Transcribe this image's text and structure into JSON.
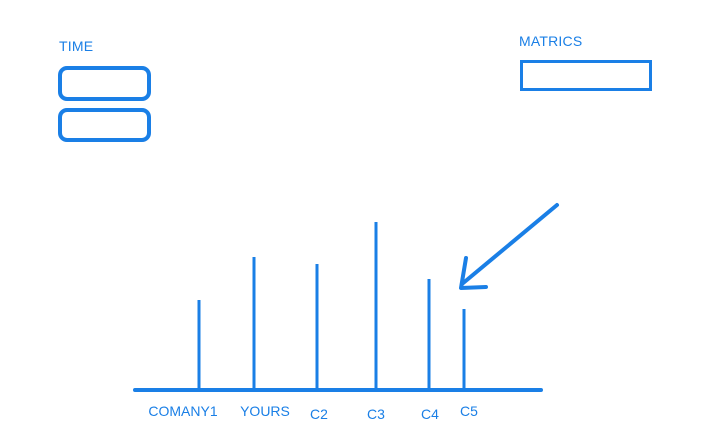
{
  "accent_color": "#1a7fe6",
  "time": {
    "label": "TIME",
    "start_value": "",
    "end_value": ""
  },
  "metrics": {
    "label": "MATRICS",
    "value": ""
  },
  "arrow": {
    "icon": "arrow-pointing-to-c5-icon"
  },
  "chart_data": {
    "type": "bar",
    "categories": [
      "COMANY1",
      "YOURS",
      "C2",
      "C3",
      "C4",
      "C5"
    ],
    "values": [
      88,
      131,
      124,
      166,
      109,
      79
    ],
    "title": "",
    "xlabel": "",
    "ylabel": "",
    "ylim": [
      0,
      170
    ],
    "grid": false
  }
}
